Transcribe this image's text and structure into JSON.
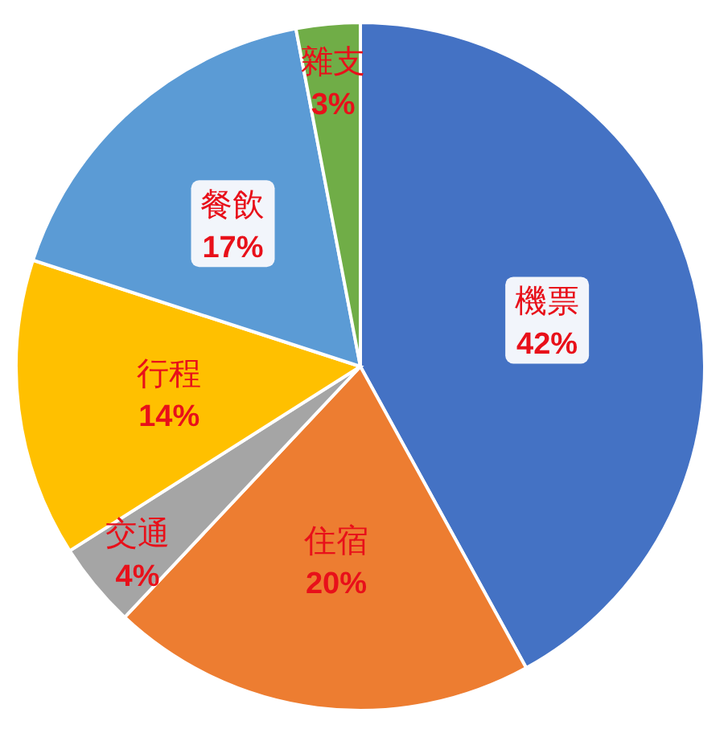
{
  "chart_data": {
    "type": "pie",
    "categories": [
      "機票",
      "住宿",
      "交通",
      "行程",
      "餐飲",
      "雜支"
    ],
    "values": [
      42,
      20,
      4,
      14,
      17,
      3
    ],
    "value_labels": [
      "42%",
      "20%",
      "4%",
      "14%",
      "17%",
      "3%"
    ],
    "colors": [
      "#4472c4",
      "#ed7d31",
      "#a5a5a5",
      "#ffc000",
      "#5b9bd5",
      "#70ad47"
    ]
  }
}
